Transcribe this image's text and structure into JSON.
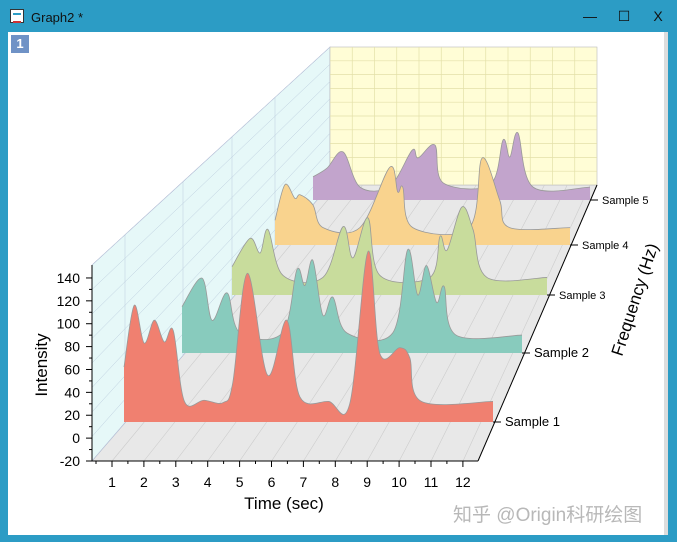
{
  "window": {
    "title": "Graph2 *",
    "layer_label": "1",
    "minimize": "—",
    "maximize": "☐",
    "close": "X"
  },
  "watermark": "知乎 @Origin科研绘图",
  "colors": {
    "titlebar": "#2c9cc5",
    "back_wall": "#fffdd6",
    "side_wall": "#e6f8f8",
    "floor": "#e8e8e8"
  },
  "chart_data": {
    "type": "area",
    "subtype": "3D waterfall",
    "xlabel": "Time (sec)",
    "ylabel": "Intensity",
    "zlabel": "Frequency (Hz)",
    "xticks": [
      "1",
      "2",
      "3",
      "4",
      "5",
      "6",
      "7",
      "8",
      "9",
      "10",
      "11",
      "12"
    ],
    "yticks": [
      "-20",
      "0",
      "20",
      "40",
      "60",
      "80",
      "100",
      "120",
      "140"
    ],
    "xlim": [
      1,
      12
    ],
    "ylim": [
      -20,
      140
    ],
    "grid": true,
    "series": [
      {
        "name": "Sample 1",
        "color": "#f08070",
        "baseline": 14,
        "points": [
          [
            1.4,
            62
          ],
          [
            1.72,
            116
          ],
          [
            2.03,
            83
          ],
          [
            2.35,
            103
          ],
          [
            2.66,
            84
          ],
          [
            2.94,
            94
          ],
          [
            3.29,
            32
          ],
          [
            3.9,
            33
          ],
          [
            4.5,
            31
          ],
          [
            4.8,
            48
          ],
          [
            5.26,
            144
          ],
          [
            5.89,
            55
          ],
          [
            6.49,
            103
          ],
          [
            6.9,
            36
          ],
          [
            7.8,
            32
          ],
          [
            8.46,
            30
          ],
          [
            9.03,
            163
          ],
          [
            9.4,
            74
          ],
          [
            10.03,
            79
          ],
          [
            10.34,
            70
          ],
          [
            10.7,
            32
          ],
          [
            12.94,
            32
          ]
        ]
      },
      {
        "name": "Sample 2",
        "color": "#88cbbd",
        "baseline": 14,
        "points": [
          [
            1.4,
            58
          ],
          [
            2.08,
            85
          ],
          [
            2.42,
            45
          ],
          [
            2.93,
            71
          ],
          [
            3.37,
            33
          ],
          [
            4.8,
            33
          ],
          [
            5.3,
            93
          ],
          [
            5.57,
            78
          ],
          [
            5.84,
            102
          ],
          [
            6.18,
            50
          ],
          [
            6.52,
            67
          ],
          [
            7.0,
            33
          ],
          [
            8.55,
            33
          ],
          [
            9.06,
            112
          ],
          [
            9.4,
            69
          ],
          [
            9.7,
            97
          ],
          [
            10.04,
            62
          ],
          [
            10.3,
            77
          ],
          [
            10.7,
            31
          ],
          [
            12.94,
            31
          ]
        ]
      },
      {
        "name": "Sample 3",
        "color": "#c8dc9c",
        "baseline": 14,
        "points": [
          [
            1.4,
            43
          ],
          [
            2.06,
            72
          ],
          [
            2.43,
            57
          ],
          [
            2.72,
            81
          ],
          [
            3.27,
            34
          ],
          [
            4.73,
            32
          ],
          [
            5.47,
            84
          ],
          [
            5.83,
            52
          ],
          [
            6.38,
            93
          ],
          [
            6.82,
            34
          ],
          [
            8.65,
            32
          ],
          [
            9.02,
            74
          ],
          [
            9.28,
            60
          ],
          [
            9.82,
            104
          ],
          [
            10.23,
            81
          ],
          [
            10.74,
            32
          ],
          [
            12.94,
            32
          ]
        ]
      },
      {
        "name": "Sample 4",
        "color": "#f9d38e",
        "baseline": 14,
        "points": [
          [
            1.4,
            41
          ],
          [
            1.79,
            80
          ],
          [
            2.18,
            65
          ],
          [
            2.38,
            69
          ],
          [
            2.88,
            58
          ],
          [
            3.28,
            33
          ],
          [
            4.72,
            33
          ],
          [
            5.89,
            99
          ],
          [
            6.2,
            72
          ],
          [
            6.4,
            77
          ],
          [
            6.79,
            33
          ],
          [
            9.0,
            33
          ],
          [
            9.5,
            109
          ],
          [
            10.19,
            63
          ],
          [
            10.58,
            33
          ],
          [
            12.94,
            33
          ]
        ]
      },
      {
        "name": "Sample 5",
        "color": "#c2a4cc",
        "baseline": 14,
        "points": [
          [
            1.4,
            41
          ],
          [
            1.98,
            51
          ],
          [
            2.65,
            70
          ],
          [
            3.36,
            29
          ],
          [
            4.6,
            30
          ],
          [
            5.53,
            72
          ],
          [
            5.78,
            63
          ],
          [
            6.48,
            78
          ],
          [
            6.82,
            34
          ],
          [
            8.78,
            32
          ],
          [
            9.32,
            84
          ],
          [
            9.6,
            64
          ],
          [
            9.94,
            92
          ],
          [
            10.57,
            29
          ],
          [
            12.94,
            29
          ]
        ]
      }
    ]
  }
}
